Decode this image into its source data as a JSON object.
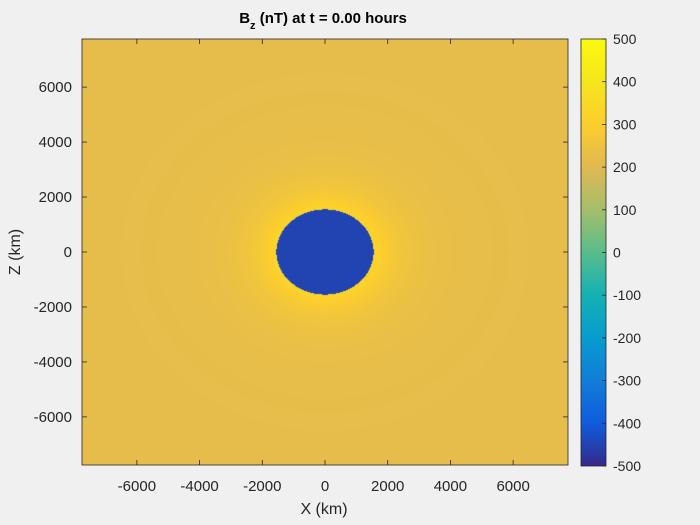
{
  "figure": {
    "background": "#f0f0f0",
    "axes_color": "#262626"
  },
  "chart_data": {
    "type": "heatmap",
    "title": {
      "main": "B",
      "subscript": "z",
      "rest": " (nT) at t = 0.00 hours"
    },
    "xlabel": "X (km)",
    "ylabel": "Z (km)",
    "xlim": [
      -7750,
      7750
    ],
    "ylim": [
      -7750,
      7750
    ],
    "xticks": [
      -6000,
      -4000,
      -2000,
      0,
      2000,
      4000,
      6000
    ],
    "yticks": [
      -6000,
      -4000,
      -2000,
      0,
      2000,
      4000,
      6000
    ],
    "grid": false,
    "colormap": "parula",
    "clim": [
      -500,
      500
    ],
    "colorbar_ticks": [
      -500,
      -400,
      -300,
      -200,
      -100,
      0,
      100,
      200,
      300,
      400,
      500
    ],
    "field": {
      "background_value": 220,
      "core_value": -450,
      "core_radius_km": 1550,
      "rim_value": 330,
      "halo_width_km": 2800
    }
  }
}
